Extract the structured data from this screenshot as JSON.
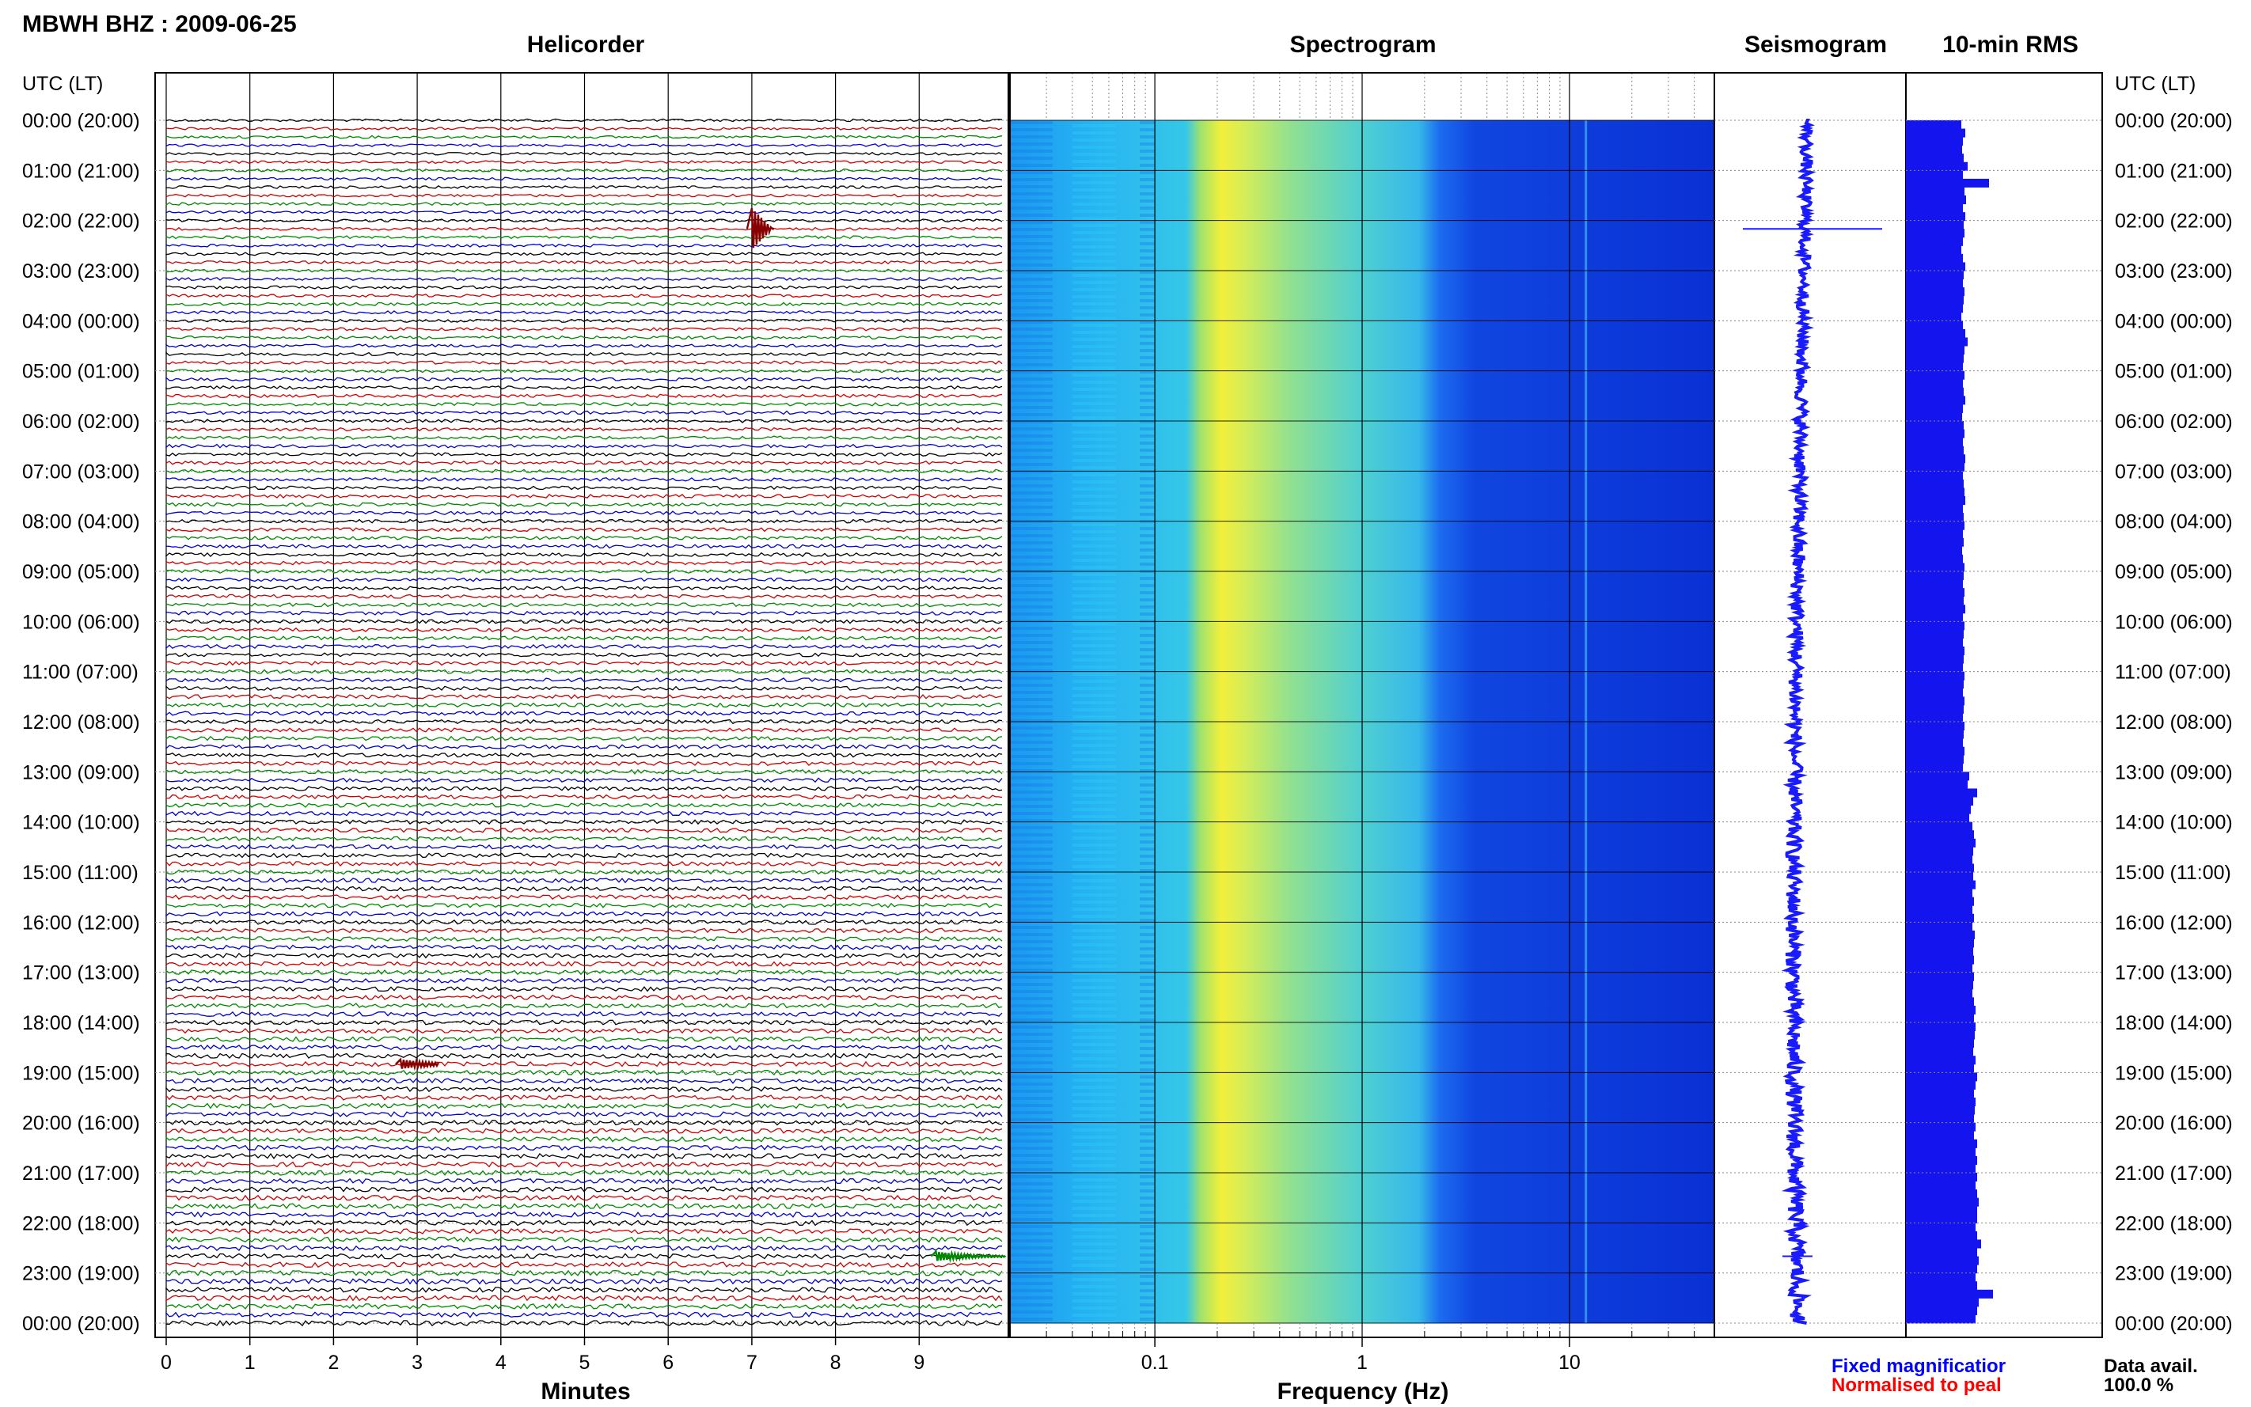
{
  "header": {
    "station_title": "MBWH BHZ : 2009-06-25"
  },
  "panels": {
    "helicorder": "Helicorder",
    "spectrogram": "Spectrogram",
    "seismogram": "Seismogram",
    "rms": "10-min RMS"
  },
  "axes": {
    "left_header": "UTC (LT)",
    "right_header": "UTC (LT)",
    "minutes_label": "Minutes",
    "frequency_label": "Frequency (Hz)",
    "minute_ticks": [
      "0",
      "1",
      "2",
      "3",
      "4",
      "5",
      "6",
      "7",
      "8",
      "9"
    ],
    "frequency_ticks": [
      "0.1",
      "1",
      "10"
    ],
    "time_ticks": [
      "00:00 (20:00)",
      "01:00 (21:00)",
      "02:00 (22:00)",
      "03:00 (23:00)",
      "04:00 (00:00)",
      "05:00 (01:00)",
      "06:00 (02:00)",
      "07:00 (03:00)",
      "08:00 (04:00)",
      "09:00 (05:00)",
      "10:00 (06:00)",
      "11:00 (07:00)",
      "12:00 (08:00)",
      "13:00 (09:00)",
      "14:00 (10:00)",
      "15:00 (11:00)",
      "16:00 (12:00)",
      "17:00 (13:00)",
      "18:00 (14:00)",
      "19:00 (15:00)",
      "20:00 (16:00)",
      "21:00 (17:00)",
      "22:00 (18:00)",
      "23:00 (19:00)",
      "00:00 (20:00)"
    ]
  },
  "legend": {
    "fixed": "Fixed magnificatior",
    "normalised": "Normalised to peal",
    "fixed_color": "#0000ff",
    "normalised_color": "#ff0000",
    "data_avail_label": "Data avail.",
    "data_avail_value": "100.0 %"
  },
  "chart_data": {
    "type": "heatmap",
    "title": "MBWH BHZ : 2009-06-25",
    "components": [
      "helicorder",
      "spectrogram",
      "seismogram",
      "rms"
    ],
    "time_range_hours": [
      0,
      24
    ],
    "minutes_range": [
      0,
      10
    ],
    "frequency_range_hz": [
      0.02,
      50
    ],
    "frequency_scale": "log",
    "trace_colors": [
      "#000000",
      "#cc0000",
      "#008800",
      "#0000cc"
    ],
    "events": [
      {
        "time": "02:10",
        "minute": 7.0,
        "amplitude": "large",
        "color": "#880000"
      },
      {
        "time": "18:50",
        "minute": 2.8,
        "amplitude": "medium",
        "color": "#880000"
      },
      {
        "time": "22:40",
        "minute": 9.2,
        "amplitude": "medium",
        "color": "#008800"
      }
    ],
    "spectrogram_peak_hz": 0.25,
    "spectral_line_hz": 12,
    "rms_10min": [
      0.7,
      0.75,
      0.72,
      0.71,
      0.73,
      0.78,
      0.72,
      1.05,
      0.74,
      0.76,
      0.72,
      0.75,
      0.73,
      0.74,
      0.72,
      0.7,
      0.72,
      0.75,
      0.73,
      0.72,
      0.74,
      0.73,
      0.72,
      0.7,
      0.72,
      0.75,
      0.78,
      0.74,
      0.73,
      0.72,
      0.74,
      0.72,
      0.73,
      0.75,
      0.72,
      0.71,
      0.73,
      0.74,
      0.72,
      0.73,
      0.75,
      0.74,
      0.72,
      0.73,
      0.74,
      0.75,
      0.72,
      0.73,
      0.74,
      0.72,
      0.73,
      0.71,
      0.72,
      0.74,
      0.73,
      0.72,
      0.74,
      0.73,
      0.75,
      0.72,
      0.74,
      0.73,
      0.72,
      0.74,
      0.73,
      0.72,
      0.74,
      0.73,
      0.72,
      0.74,
      0.73,
      0.72,
      0.74,
      0.73,
      0.72,
      0.74,
      0.73,
      0.72,
      0.8,
      0.78,
      0.9,
      0.85,
      0.82,
      0.8,
      0.84,
      0.86,
      0.88,
      0.85,
      0.84,
      0.86,
      0.85,
      0.88,
      0.84,
      0.86,
      0.84,
      0.86,
      0.84,
      0.87,
      0.86,
      0.85,
      0.86,
      0.84,
      0.86,
      0.85,
      0.84,
      0.86,
      0.88,
      0.86,
      0.88,
      0.87,
      0.86,
      0.85,
      0.88,
      0.86,
      0.9,
      0.88,
      0.86,
      0.88,
      0.87,
      0.86,
      0.88,
      0.86,
      0.9,
      0.88,
      0.9,
      0.88,
      0.9,
      0.88,
      0.9,
      0.92,
      0.9,
      0.9,
      0.88,
      0.9,
      0.95,
      0.9,
      0.92,
      0.9,
      0.88,
      0.9,
      1.1,
      0.92,
      0.9,
      0.88
    ]
  }
}
